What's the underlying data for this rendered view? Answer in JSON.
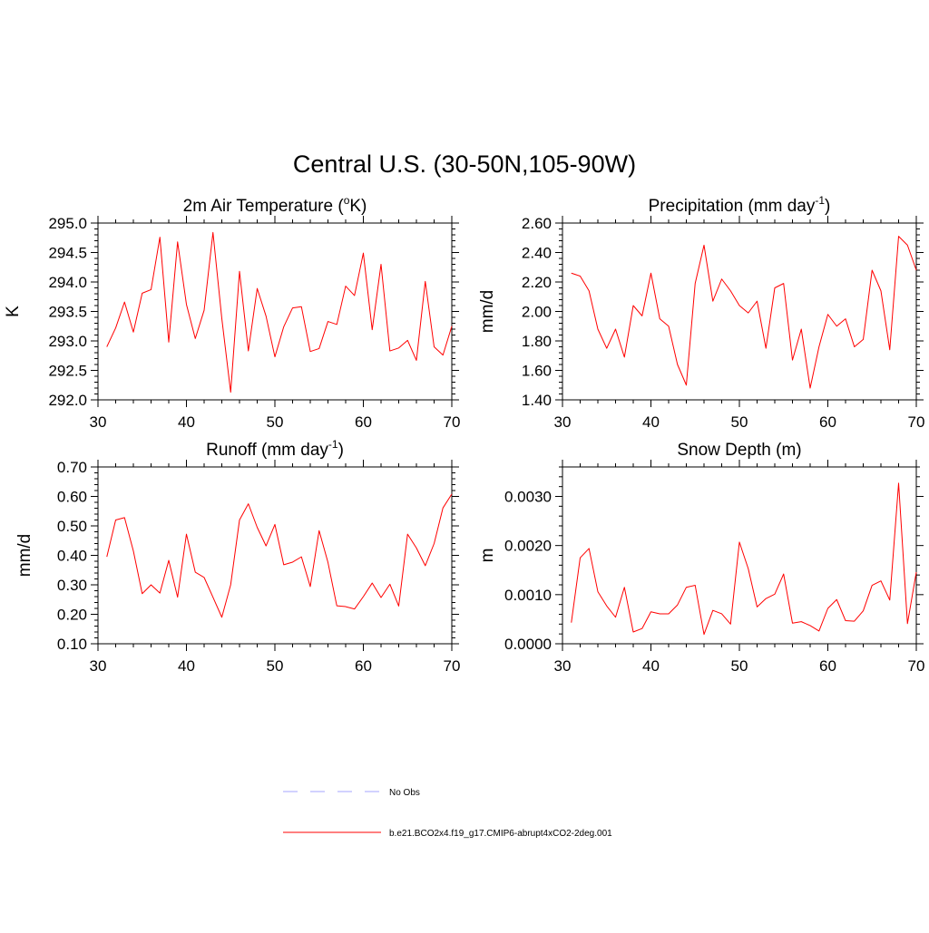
{
  "title": "Central U.S. (30-50N,105-90W)",
  "colors": {
    "series": "#ff0000",
    "obs": "#a6a6ff",
    "axis": "#000000"
  },
  "legend": [
    {
      "label": "No Obs",
      "style": "dashed",
      "color": "#a6a6ff"
    },
    {
      "label": "b.e21.BCO2x4.f19_g17.CMIP6-abrupt4xCO2-2deg.001",
      "style": "solid",
      "color": "#ff0000"
    }
  ],
  "chart_data": [
    {
      "type": "line",
      "title": "2m Air Temperature (",
      "title_sup": "o",
      "title_tail": "K)",
      "ylabel": "K",
      "xlim": [
        30,
        70
      ],
      "ylim": [
        292.0,
        295.0
      ],
      "xticks": [
        30,
        40,
        50,
        60,
        70
      ],
      "yticks": [
        292.0,
        292.5,
        293.0,
        293.5,
        294.0,
        294.5,
        295.0
      ],
      "ytick_labels": [
        "292.0",
        "292.5",
        "293.0",
        "293.5",
        "294.0",
        "294.5",
        "295.0"
      ],
      "series": [
        {
          "x": [
            31,
            32,
            33,
            34,
            35,
            36,
            37,
            38,
            39,
            40,
            41,
            42,
            43,
            44,
            45,
            46,
            47,
            48,
            49,
            50,
            51,
            52,
            53,
            54,
            55,
            56,
            57,
            58,
            59,
            60,
            61,
            62,
            63,
            64,
            65,
            66,
            67,
            68,
            69,
            70
          ],
          "values": [
            292.9,
            293.22,
            293.66,
            293.15,
            293.81,
            293.87,
            294.76,
            292.98,
            294.68,
            293.62,
            293.04,
            293.52,
            294.84,
            293.38,
            292.13,
            294.18,
            292.83,
            293.89,
            293.42,
            292.73,
            293.24,
            293.56,
            293.58,
            292.82,
            292.87,
            293.33,
            293.28,
            293.93,
            293.77,
            294.49,
            293.19,
            294.3,
            292.83,
            292.88,
            293.01,
            292.67,
            294.01,
            292.9,
            292.76,
            293.25
          ]
        }
      ]
    },
    {
      "type": "line",
      "title": "Precipitation (mm day",
      "title_sup": "-1",
      "title_tail": ")",
      "ylabel": "mm/d",
      "xlim": [
        30,
        70
      ],
      "ylim": [
        1.4,
        2.6
      ],
      "xticks": [
        30,
        40,
        50,
        60,
        70
      ],
      "yticks": [
        1.4,
        1.6,
        1.8,
        2.0,
        2.2,
        2.4,
        2.6
      ],
      "ytick_labels": [
        "1.40",
        "1.60",
        "1.80",
        "2.00",
        "2.20",
        "2.40",
        "2.60"
      ],
      "series": [
        {
          "x": [
            31,
            32,
            33,
            34,
            35,
            36,
            37,
            38,
            39,
            40,
            41,
            42,
            43,
            44,
            45,
            46,
            47,
            48,
            49,
            50,
            51,
            52,
            53,
            54,
            55,
            56,
            57,
            58,
            59,
            60,
            61,
            62,
            63,
            64,
            65,
            66,
            67,
            68,
            69,
            70
          ],
          "values": [
            2.26,
            2.24,
            2.14,
            1.88,
            1.75,
            1.88,
            1.69,
            2.04,
            1.97,
            2.26,
            1.95,
            1.9,
            1.64,
            1.5,
            2.19,
            2.45,
            2.07,
            2.22,
            2.14,
            2.04,
            1.99,
            2.07,
            1.75,
            2.16,
            2.19,
            1.67,
            1.88,
            1.48,
            1.76,
            1.98,
            1.9,
            1.95,
            1.76,
            1.81,
            2.28,
            2.14,
            1.74,
            2.51,
            2.45,
            2.28
          ]
        }
      ]
    },
    {
      "type": "line",
      "title": "Runoff (mm day",
      "title_sup": "-1",
      "title_tail": ")",
      "ylabel": "mm/d",
      "xlim": [
        30,
        70
      ],
      "ylim": [
        0.1,
        0.7
      ],
      "xticks": [
        30,
        40,
        50,
        60,
        70
      ],
      "yticks": [
        0.1,
        0.2,
        0.3,
        0.4,
        0.5,
        0.6,
        0.7
      ],
      "ytick_labels": [
        "0.10",
        "0.20",
        "0.30",
        "0.40",
        "0.50",
        "0.60",
        "0.70"
      ],
      "series": [
        {
          "x": [
            31,
            32,
            33,
            34,
            35,
            36,
            37,
            38,
            39,
            40,
            41,
            42,
            43,
            44,
            45,
            46,
            47,
            48,
            49,
            50,
            51,
            52,
            53,
            54,
            55,
            56,
            57,
            58,
            59,
            60,
            61,
            62,
            63,
            64,
            65,
            66,
            67,
            68,
            69,
            70
          ],
          "values": [
            0.395,
            0.52,
            0.528,
            0.415,
            0.27,
            0.3,
            0.272,
            0.383,
            0.258,
            0.472,
            0.343,
            0.325,
            0.258,
            0.19,
            0.3,
            0.52,
            0.575,
            0.495,
            0.432,
            0.505,
            0.368,
            0.377,
            0.395,
            0.294,
            0.484,
            0.376,
            0.229,
            0.226,
            0.218,
            0.26,
            0.306,
            0.257,
            0.302,
            0.228,
            0.472,
            0.425,
            0.365,
            0.44,
            0.561,
            0.608
          ]
        }
      ]
    },
    {
      "type": "line",
      "title": "Snow Depth (m)",
      "title_sup": "",
      "title_tail": "",
      "ylabel": "m",
      "xlim": [
        30,
        70
      ],
      "ylim": [
        0.0,
        0.0036
      ],
      "xticks": [
        30,
        40,
        50,
        60,
        70
      ],
      "yticks": [
        0.0,
        0.001,
        0.002,
        0.003
      ],
      "ytick_labels": [
        "0.0000",
        "0.0010",
        "0.0020",
        "0.0030"
      ],
      "series": [
        {
          "x": [
            31,
            32,
            33,
            34,
            35,
            36,
            37,
            38,
            39,
            40,
            41,
            42,
            43,
            44,
            45,
            46,
            47,
            48,
            49,
            50,
            51,
            52,
            53,
            54,
            55,
            56,
            57,
            58,
            59,
            60,
            61,
            62,
            63,
            64,
            65,
            66,
            67,
            68,
            69,
            70
          ],
          "values": [
            0.00043,
            0.00175,
            0.00194,
            0.00106,
            0.00077,
            0.00054,
            0.00115,
            0.00024,
            0.00031,
            0.00065,
            0.00061,
            0.00061,
            0.00079,
            0.00115,
            0.00119,
            0.00019,
            0.00068,
            0.00061,
            0.0004,
            0.00207,
            0.00153,
            0.00075,
            0.00092,
            0.00101,
            0.00142,
            0.00042,
            0.00045,
            0.00037,
            0.00026,
            0.00072,
            0.0009,
            0.00047,
            0.00046,
            0.00067,
            0.00119,
            0.00128,
            0.00089,
            0.00327,
            0.00041,
            0.00146
          ]
        }
      ]
    }
  ]
}
